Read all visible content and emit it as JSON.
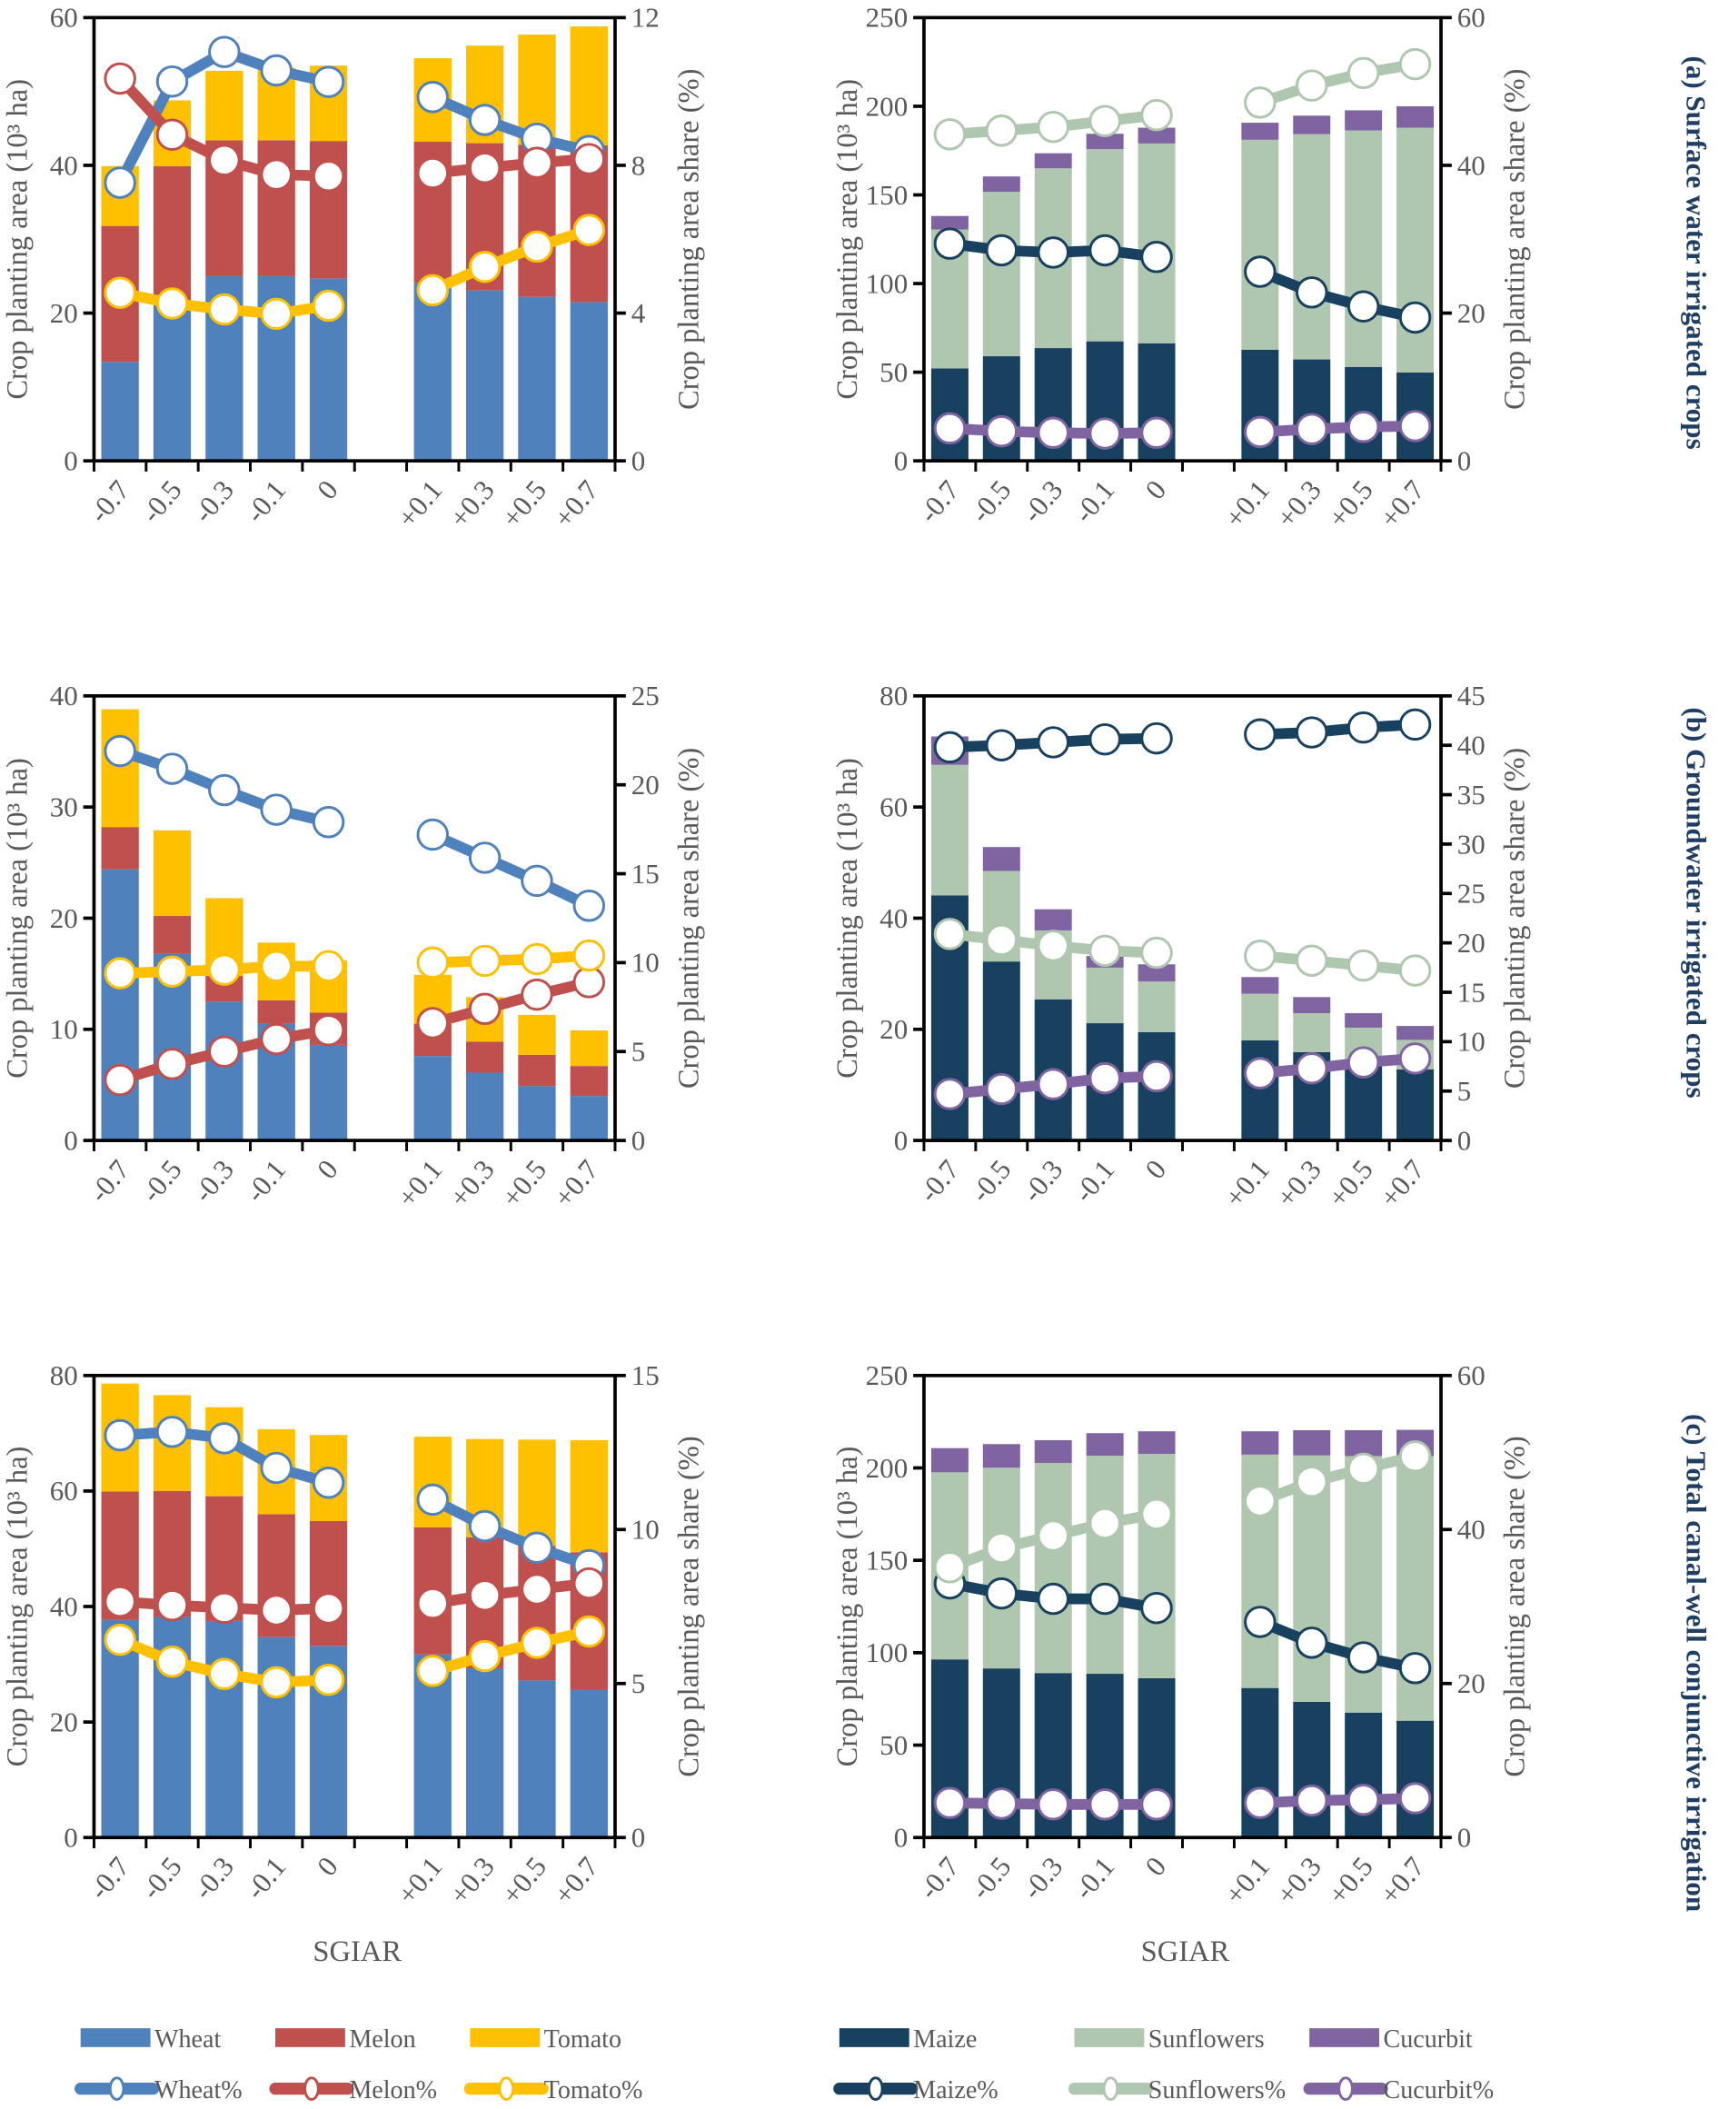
{
  "colors": {
    "Wheat": "#4F81BD",
    "Melon": "#C0504D",
    "Tomato": "#FFC000",
    "Maize": "#18405F",
    "Sunflowers": "#AFC6AF",
    "Cucurbit": "#8064A2",
    "title": "#1F3E64",
    "axis_text": "#595959"
  },
  "panel_titles": [
    "(a) Surface water irrigated crops",
    "(b) Groundwater irrigated crops",
    "(c) Total canal-well conjunctive irrigation"
  ],
  "legend": {
    "left_bars": [
      "Wheat",
      "Melon",
      "Tomato"
    ],
    "left_lines": [
      "Wheat%",
      "Melon%",
      "Tomato%"
    ],
    "right_bars": [
      "Maize",
      "Sunflowers",
      "Cucurbit"
    ],
    "right_lines": [
      "Maize%",
      "Sunflowers%",
      "Cucurbit%"
    ]
  },
  "chart_data": [
    {
      "type": "bar",
      "stacked": true,
      "panel": "a",
      "group": "left",
      "categories": [
        "-0.7",
        "-0.5",
        "-0.3",
        "-0.1",
        "0",
        "+0.1",
        "+0.3",
        "+0.5",
        "+0.7"
      ],
      "xlabel": "SGIAR",
      "show_xlabel": false,
      "ylabel": "Crop planting area (10³ ha)",
      "y2label": "Crop planting area share (%)",
      "ylim": [
        0,
        60
      ],
      "yticks": [
        "0",
        "20",
        "40",
        "60"
      ],
      "y2lim": [
        0,
        12
      ],
      "y2ticks": [
        "0",
        "4",
        "8",
        "12"
      ],
      "series": [
        {
          "name": "Wheat",
          "values": [
            13.4,
            21,
            25,
            25,
            24.7,
            24.1,
            23.1,
            22.2,
            21.5
          ]
        },
        {
          "name": "Melon",
          "values": [
            18.4,
            18.9,
            18.4,
            18.4,
            18.6,
            19.1,
            19.9,
            20.6,
            21.2
          ]
        },
        {
          "name": "Tomato",
          "values": [
            8.1,
            8.9,
            9.4,
            9.8,
            10.2,
            11.3,
            13.2,
            14.9,
            16.1
          ]
        }
      ],
      "lines": [
        {
          "name": "Wheat%",
          "color_key": "Wheat",
          "values": [
            7.53,
            10.27,
            11.07,
            10.57,
            10.26,
            9.85,
            9.23,
            8.72,
            8.39
          ]
        },
        {
          "name": "Melon%",
          "color_key": "Melon",
          "values": [
            10.35,
            8.83,
            8.14,
            7.75,
            7.71,
            7.79,
            7.93,
            8.07,
            8.17
          ]
        },
        {
          "name": "Tomato%",
          "color_key": "Tomato",
          "values": [
            4.55,
            4.26,
            4.1,
            3.98,
            4.2,
            4.62,
            5.25,
            5.8,
            6.25
          ]
        }
      ]
    },
    {
      "type": "bar",
      "stacked": true,
      "panel": "a",
      "group": "right",
      "categories": [
        "-0.7",
        "-0.5",
        "-0.3",
        "-0.1",
        "0",
        "+0.1",
        "+0.3",
        "+0.5",
        "+0.7"
      ],
      "xlabel": "SGIAR",
      "show_xlabel": false,
      "ylabel": "Crop planting area (10³ ha)",
      "y2label": "Crop planting area share (%)",
      "ylim": [
        0,
        250
      ],
      "yticks": [
        "0",
        "50",
        "100",
        "150",
        "200",
        "250"
      ],
      "y2lim": [
        0,
        60
      ],
      "y2ticks": [
        "0",
        "20",
        "40",
        "60"
      ],
      "series": [
        {
          "name": "Maize",
          "values": [
            52.1,
            59,
            63.6,
            67.4,
            66.3,
            62.7,
            57.2,
            53,
            49.8
          ]
        },
        {
          "name": "Sunflowers",
          "values": [
            78.4,
            92.7,
            101.4,
            108.4,
            112.7,
            118.4,
            127.1,
            133.4,
            138.1
          ]
        },
        {
          "name": "Cucurbit",
          "values": [
            7.6,
            8.7,
            8.5,
            8.7,
            8.9,
            9.6,
            10.4,
            11.3,
            12.1
          ]
        }
      ],
      "lines": [
        {
          "name": "Maize%",
          "color_key": "Maize",
          "values": [
            29.4,
            28.5,
            28.2,
            28.5,
            27.6,
            25.6,
            22.8,
            20.9,
            19.4
          ]
        },
        {
          "name": "Sunflowers%",
          "color_key": "Sunflowers",
          "values": [
            44.2,
            44.7,
            45.2,
            46.0,
            46.8,
            48.5,
            50.8,
            52.5,
            53.7
          ]
        },
        {
          "name": "Cucurbit%",
          "color_key": "Cucurbit",
          "values": [
            4.4,
            4.0,
            3.8,
            3.7,
            3.8,
            3.9,
            4.3,
            4.6,
            4.7
          ]
        }
      ]
    },
    {
      "type": "bar",
      "stacked": true,
      "panel": "b",
      "group": "left",
      "categories": [
        "-0.7",
        "-0.5",
        "-0.3",
        "-0.1",
        "0",
        "+0.1",
        "+0.3",
        "+0.5",
        "+0.7"
      ],
      "xlabel": "SGIAR",
      "show_xlabel": false,
      "ylabel": "Crop planting area (10³ ha)",
      "y2label": "Crop planting area share (%)",
      "ylim": [
        0,
        40
      ],
      "yticks": [
        "0",
        "10",
        "20",
        "30",
        "40"
      ],
      "y2lim": [
        0,
        25
      ],
      "y2ticks": [
        "0",
        "5",
        "10",
        "15",
        "20",
        "25"
      ],
      "series": [
        {
          "name": "Wheat",
          "values": [
            24.4,
            16.8,
            12.5,
            10.5,
            8.6,
            7.6,
            6.1,
            4.9,
            4.0
          ]
        },
        {
          "name": "Melon",
          "values": [
            3.8,
            3.4,
            2.3,
            2.1,
            2.9,
            2.9,
            2.8,
            2.8,
            2.7
          ]
        },
        {
          "name": "Tomato",
          "values": [
            10.6,
            7.7,
            7.0,
            5.2,
            4.7,
            4.4,
            4.0,
            3.6,
            3.2
          ]
        }
      ],
      "lines": [
        {
          "name": "Wheat%",
          "color_key": "Wheat",
          "values": [
            21.9,
            20.9,
            19.7,
            18.6,
            17.9,
            17.2,
            15.9,
            14.6,
            13.2
          ]
        },
        {
          "name": "Melon%",
          "color_key": "Melon",
          "values": [
            3.4,
            4.3,
            5.0,
            5.7,
            6.2,
            6.6,
            7.4,
            8.2,
            8.9
          ]
        },
        {
          "name": "Tomato%",
          "color_key": "Tomato",
          "values": [
            9.4,
            9.5,
            9.6,
            9.8,
            9.8,
            10.0,
            10.1,
            10.2,
            10.4
          ]
        }
      ]
    },
    {
      "type": "bar",
      "stacked": true,
      "panel": "b",
      "group": "right",
      "categories": [
        "-0.7",
        "-0.5",
        "-0.3",
        "-0.1",
        "0",
        "+0.1",
        "+0.3",
        "+0.5",
        "+0.7"
      ],
      "xlabel": "SGIAR",
      "show_xlabel": false,
      "ylabel": "Crop planting area (10³ ha)",
      "y2label": "Crop planting area share (%)",
      "ylim": [
        0,
        80
      ],
      "yticks": [
        "0",
        "20",
        "40",
        "60",
        "80"
      ],
      "y2lim": [
        0,
        45
      ],
      "y2ticks": [
        "0",
        "5",
        "10",
        "15",
        "20",
        "25",
        "30",
        "35",
        "40",
        "45"
      ],
      "series": [
        {
          "name": "Maize",
          "values": [
            44.1,
            32.2,
            25.4,
            21.1,
            19.5,
            18.0,
            15.9,
            14.3,
            12.8
          ]
        },
        {
          "name": "Sunflowers",
          "values": [
            23.5,
            16.3,
            12.4,
            10.0,
            9.1,
            8.4,
            7.0,
            6.0,
            5.3
          ]
        },
        {
          "name": "Cucurbit",
          "values": [
            5.1,
            4.3,
            3.8,
            2.1,
            3.1,
            3.0,
            2.9,
            2.6,
            2.5
          ]
        }
      ],
      "lines": [
        {
          "name": "Maize%",
          "color_key": "Maize",
          "values": [
            39.8,
            40.0,
            40.3,
            40.6,
            40.7,
            41.1,
            41.3,
            41.8,
            42.1
          ]
        },
        {
          "name": "Sunflowers%",
          "color_key": "Sunflowers",
          "values": [
            20.9,
            20.3,
            19.7,
            19.2,
            19.0,
            18.7,
            18.2,
            17.7,
            17.2
          ]
        },
        {
          "name": "Cucurbit%",
          "color_key": "Cucurbit",
          "values": [
            4.7,
            5.2,
            5.7,
            6.3,
            6.5,
            6.8,
            7.3,
            7.9,
            8.3
          ]
        }
      ]
    },
    {
      "type": "bar",
      "stacked": true,
      "panel": "c",
      "group": "left",
      "categories": [
        "-0.7",
        "-0.5",
        "-0.3",
        "-0.1",
        "0",
        "+0.1",
        "+0.3",
        "+0.5",
        "+0.7"
      ],
      "xlabel": "SGIAR",
      "show_xlabel": true,
      "ylabel": "Crop planting area (10³ ha)",
      "y2label": "Crop planting area share (%)",
      "ylim": [
        0,
        80
      ],
      "yticks": [
        "0",
        "20",
        "40",
        "60",
        "80"
      ],
      "y2lim": [
        0,
        15
      ],
      "y2ticks": [
        "0",
        "5",
        "10",
        "15"
      ],
      "series": [
        {
          "name": "Wheat",
          "values": [
            37.7,
            38.2,
            37.5,
            34.7,
            33.2,
            31.7,
            29.3,
            27.2,
            25.6
          ]
        },
        {
          "name": "Melon",
          "values": [
            22.2,
            21.8,
            21.6,
            21.3,
            21.6,
            22.0,
            22.7,
            23.3,
            23.8
          ]
        },
        {
          "name": "Tomato",
          "values": [
            18.7,
            16.6,
            15.4,
            14.7,
            14.9,
            15.7,
            17.0,
            18.4,
            19.4
          ]
        }
      ],
      "lines": [
        {
          "name": "Wheat%",
          "color_key": "Wheat",
          "values": [
            13.06,
            13.17,
            12.96,
            12.0,
            11.52,
            10.97,
            10.11,
            9.41,
            8.84
          ]
        },
        {
          "name": "Melon%",
          "color_key": "Melon",
          "values": [
            7.66,
            7.54,
            7.46,
            7.38,
            7.44,
            7.6,
            7.86,
            8.06,
            8.25
          ]
        },
        {
          "name": "Tomato%",
          "color_key": "Tomato",
          "values": [
            6.42,
            5.71,
            5.31,
            5.04,
            5.12,
            5.41,
            5.89,
            6.32,
            6.69
          ]
        }
      ]
    },
    {
      "type": "bar",
      "stacked": true,
      "panel": "c",
      "group": "right",
      "categories": [
        "-0.7",
        "-0.5",
        "-0.3",
        "-0.1",
        "0",
        "+0.1",
        "+0.3",
        "+0.5",
        "+0.7"
      ],
      "xlabel": "SGIAR",
      "show_xlabel": true,
      "ylabel": "Crop planting area (10³ ha)",
      "y2label": "Crop planting area share (%)",
      "ylim": [
        0,
        250
      ],
      "yticks": [
        "0",
        "50",
        "100",
        "150",
        "200",
        "250"
      ],
      "y2lim": [
        0,
        60
      ],
      "y2ticks": [
        "0",
        "20",
        "40",
        "60"
      ],
      "series": [
        {
          "name": "Maize",
          "values": [
            96.4,
            91.5,
            89.0,
            88.6,
            86.2,
            80.9,
            73.4,
            67.6,
            63.2
          ]
        },
        {
          "name": "Sunflowers",
          "values": [
            101.2,
            108.6,
            113.7,
            118.0,
            121.4,
            126.3,
            133.4,
            138.8,
            143.2
          ]
        },
        {
          "name": "Cucurbit",
          "values": [
            13.1,
            12.8,
            12.3,
            12.2,
            12.2,
            12.6,
            13.6,
            14.0,
            14.2
          ]
        }
      ],
      "lines": [
        {
          "name": "Maize%",
          "color_key": "Maize",
          "values": [
            33.0,
            31.7,
            31.0,
            31.0,
            29.8,
            28.0,
            25.3,
            23.4,
            22.0
          ]
        },
        {
          "name": "Sunflowers%",
          "color_key": "Sunflowers",
          "values": [
            35.1,
            37.6,
            39.2,
            40.8,
            42.0,
            43.7,
            46.2,
            47.9,
            49.5
          ]
        },
        {
          "name": "Cucurbit%",
          "color_key": "Cucurbit",
          "values": [
            4.5,
            4.4,
            4.3,
            4.3,
            4.3,
            4.5,
            4.8,
            4.9,
            5.1
          ]
        }
      ]
    }
  ]
}
